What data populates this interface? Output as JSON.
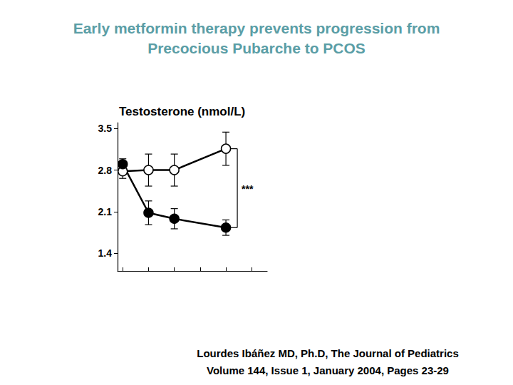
{
  "chart_data": {
    "type": "line",
    "title": [
      "Early metformin therapy prevents progression from",
      "Precocious Pubarche to PCOS"
    ],
    "ylabel": "Testosterone (nmol/L)",
    "annotation": "***",
    "citation": [
      "Lourdes Ibáñez MD, Ph.D, The Journal of Pediatrics",
      "Volume 144, Issue 1, January 2004, Pages 23-29"
    ],
    "x": [
      0,
      1,
      2,
      4
    ],
    "xlim": [
      -0.2,
      5.6
    ],
    "xticks": [
      0,
      1,
      2,
      3,
      4,
      5
    ],
    "ylim": [
      1.1,
      3.6
    ],
    "yticks": [
      1.4,
      2.1,
      2.8,
      3.5
    ],
    "tick_labels": "y",
    "grid": false,
    "series": [
      {
        "color": "#000000",
        "marker": "open_circle",
        "values": [
          2.78,
          2.8,
          2.8,
          3.16
        ],
        "errors": [
          0.12,
          0.27,
          0.27,
          0.28
        ]
      },
      {
        "color": "#000000",
        "marker": "filled_circle",
        "values": [
          2.9,
          2.08,
          1.98,
          1.83
        ],
        "errors": [
          0.09,
          0.2,
          0.17,
          0.13
        ]
      }
    ]
  }
}
